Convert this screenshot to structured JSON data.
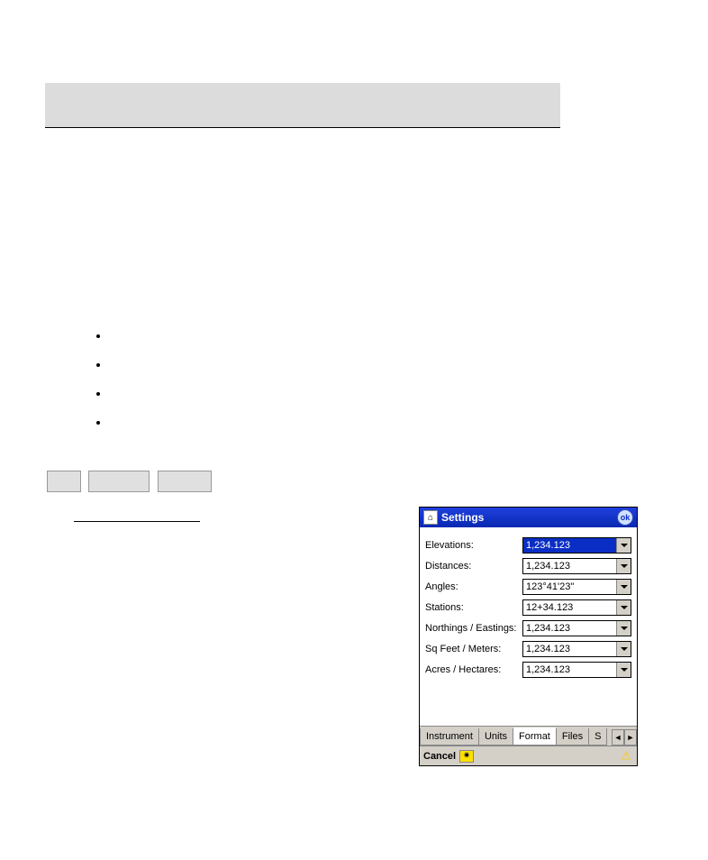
{
  "window": {
    "title": "Settings",
    "ok": "ok"
  },
  "form": {
    "rows": [
      {
        "label": "Elevations:",
        "value": "1,234.123",
        "selected": true
      },
      {
        "label": "Distances:",
        "value": "1,234.123",
        "selected": false
      },
      {
        "label": "Angles:",
        "value": "123°41'23\"",
        "selected": false
      },
      {
        "label": "Stations:",
        "value": "12+34.123",
        "selected": false
      },
      {
        "label": "Northings / Eastings:",
        "value": "1,234.123",
        "selected": false
      },
      {
        "label": "Sq Feet / Meters:",
        "value": "1,234.123",
        "selected": false
      },
      {
        "label": "Acres / Hectares:",
        "value": "1,234.123",
        "selected": false
      }
    ]
  },
  "tabs": {
    "items": [
      "Instrument",
      "Units",
      "Format",
      "Files",
      "S"
    ],
    "active_index": 2
  },
  "bottombar": {
    "cancel": "Cancel"
  }
}
